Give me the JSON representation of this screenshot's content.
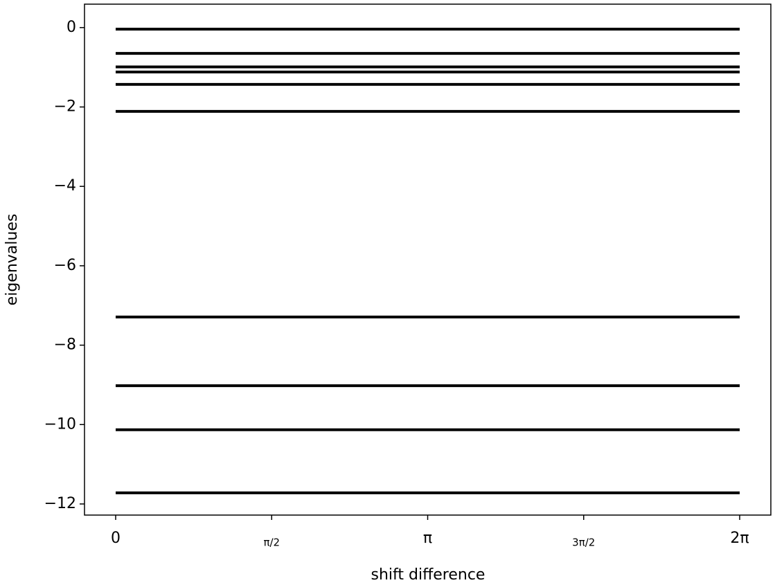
{
  "chart_data": {
    "type": "line",
    "xlabel": "shift difference",
    "ylabel": "eigenvalues",
    "series": [
      {
        "color": "#000000",
        "x": [
          0,
          6.2832
        ],
        "values": [
          -0.04,
          -0.04
        ]
      },
      {
        "color": "#000000",
        "x": [
          0,
          6.2832
        ],
        "values": [
          -0.65,
          -0.65
        ]
      },
      {
        "color": "#000000",
        "x": [
          0,
          6.2832
        ],
        "values": [
          -0.99,
          -0.99
        ]
      },
      {
        "color": "#000000",
        "x": [
          0,
          6.2832
        ],
        "values": [
          -1.12,
          -1.12
        ]
      },
      {
        "color": "#000000",
        "x": [
          0,
          6.2832
        ],
        "values": [
          -1.43,
          -1.43
        ]
      },
      {
        "color": "#000000",
        "x": [
          0,
          6.2832
        ],
        "values": [
          -2.11,
          -2.11
        ]
      },
      {
        "color": "#000000",
        "x": [
          0,
          6.2832
        ],
        "values": [
          -7.29,
          -7.29
        ]
      },
      {
        "color": "#000000",
        "x": [
          0,
          6.2832
        ],
        "values": [
          -9.02,
          -9.02
        ]
      },
      {
        "color": "#000000",
        "x": [
          0,
          6.2832
        ],
        "values": [
          -10.13,
          -10.13
        ]
      },
      {
        "color": "#000000",
        "x": [
          0,
          6.2832
        ],
        "values": [
          -11.72,
          -11.72
        ]
      }
    ],
    "xlim": [
      -0.314,
      6.597
    ],
    "xticks": [
      0,
      {
        "value": 1.5708,
        "label": "π/2"
      },
      {
        "value": 3.1416,
        "label": "π"
      },
      {
        "value": 4.7124,
        "label": "3π/2"
      },
      {
        "value": 6.2832,
        "label": "2π"
      }
    ],
    "ylim": [
      -12.28,
      0.59
    ],
    "yticks": [
      0,
      {
        "value": -2,
        "label": "−2"
      },
      {
        "value": -4,
        "label": "−4"
      },
      {
        "value": -6,
        "label": "−6"
      },
      {
        "value": -8,
        "label": "−8"
      },
      {
        "value": -10,
        "label": "−10"
      },
      {
        "value": -12,
        "label": "−12"
      }
    ],
    "grid": false
  }
}
